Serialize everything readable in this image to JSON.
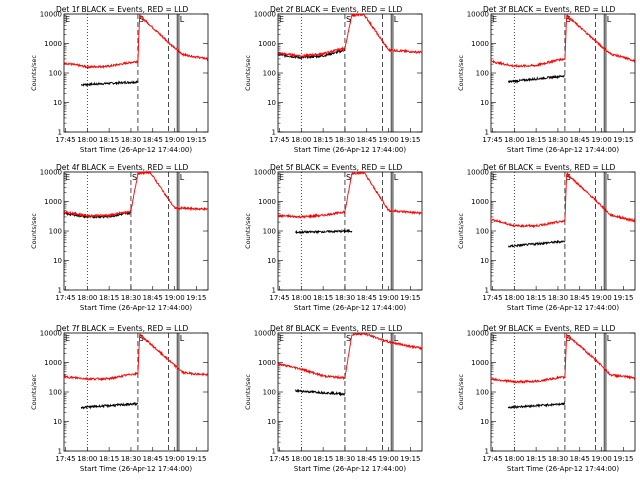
{
  "figure": {
    "background": "#ffffff",
    "series_colors": {
      "events": "#000000",
      "lld": "#ff0000"
    },
    "time_labels": [
      "17:45",
      "18:00",
      "18:15",
      "18:30",
      "18:45",
      "19:00",
      "19:15"
    ],
    "start_time_label": "Start Time (26-Apr-12 17:44:00)",
    "ylabel": "Counts/sec",
    "y_ticks": [
      "1",
      "10",
      "100",
      "1000",
      "10000"
    ],
    "event_markers": {
      "e_label": "E",
      "s_label": "S",
      "l_label": "L"
    }
  },
  "chart_data": [
    {
      "type": "line",
      "title": "Det 1f BLACK = Events, RED = LLD",
      "xlabel": "Start Time (26-Apr-12 17:44:00)",
      "ylabel": "Counts/sec",
      "xlim": [
        17.733,
        19.383
      ],
      "ylim": [
        1,
        10000
      ],
      "yscale": "log",
      "series": [
        {
          "name": "Events",
          "color": "#000000",
          "x": [
            17.93,
            18.58
          ],
          "values": [
            40,
            50
          ]
        },
        {
          "name": "LLD",
          "color": "#ff0000",
          "x": [
            17.73,
            18.0,
            18.25,
            18.5,
            18.58,
            18.6,
            19.0,
            19.1,
            19.38
          ],
          "values": [
            220,
            160,
            170,
            230,
            250,
            9000,
            700,
            420,
            300
          ]
        }
      ],
      "vlines_dotted": [
        18.0
      ],
      "vlines_dashed": [
        18.58,
        18.93
      ]
    },
    {
      "type": "line",
      "title": "Det 2f BLACK = Events, RED = LLD",
      "xlabel": "Start Time (26-Apr-12 17:44:00)",
      "ylabel": "Counts/sec",
      "xlim": [
        17.733,
        19.383
      ],
      "ylim": [
        1,
        10000
      ],
      "yscale": "log",
      "series": [
        {
          "name": "Events",
          "color": "#000000",
          "x": [
            17.73,
            18.0,
            18.25,
            18.5
          ],
          "values": [
            420,
            330,
            380,
            600
          ]
        },
        {
          "name": "LLD",
          "color": "#ff0000",
          "x": [
            17.73,
            18.0,
            18.25,
            18.5,
            18.58,
            18.72,
            19.0,
            19.38
          ],
          "values": [
            470,
            380,
            450,
            700,
            9000,
            9500,
            600,
            500
          ]
        }
      ],
      "vlines_dotted": [
        18.0
      ],
      "vlines_dashed": [
        18.5,
        18.93
      ]
    },
    {
      "type": "line",
      "title": "Det 3f BLACK = Events, RED = LLD",
      "xlabel": "Start Time (26-Apr-12 17:44:00)",
      "ylabel": "Counts/sec",
      "xlim": [
        17.733,
        19.383
      ],
      "ylim": [
        1,
        10000
      ],
      "yscale": "log",
      "series": [
        {
          "name": "Events",
          "color": "#000000",
          "x": [
            17.93,
            18.58
          ],
          "values": [
            50,
            80
          ]
        },
        {
          "name": "LLD",
          "color": "#ff0000",
          "x": [
            17.73,
            18.0,
            18.25,
            18.5,
            18.58,
            18.6,
            19.0,
            19.1,
            19.38
          ],
          "values": [
            250,
            170,
            180,
            280,
            300,
            9000,
            800,
            450,
            260
          ]
        }
      ],
      "vlines_dotted": [
        18.0
      ],
      "vlines_dashed": [
        18.58,
        18.93
      ]
    },
    {
      "type": "line",
      "title": "Det 4f BLACK = Events, RED = LLD",
      "xlabel": "Start Time (26-Apr-12 17:44:00)",
      "ylabel": "Counts/sec",
      "xlim": [
        17.733,
        19.383
      ],
      "ylim": [
        1,
        10000
      ],
      "yscale": "log",
      "series": [
        {
          "name": "Events",
          "color": "#000000",
          "x": [
            17.73,
            18.0,
            18.25,
            18.5
          ],
          "values": [
            400,
            300,
            310,
            420
          ]
        },
        {
          "name": "LLD",
          "color": "#ff0000",
          "x": [
            17.73,
            18.0,
            18.25,
            18.5,
            18.58,
            18.72,
            19.0,
            19.38
          ],
          "values": [
            450,
            330,
            340,
            470,
            9000,
            9800,
            600,
            550
          ]
        }
      ],
      "vlines_dotted": [
        18.0
      ],
      "vlines_dashed": [
        18.5,
        18.93
      ]
    },
    {
      "type": "line",
      "title": "Det 5f BLACK = Events, RED = LLD",
      "xlabel": "Start Time (26-Apr-12 17:44:00)",
      "ylabel": "Counts/sec",
      "xlim": [
        17.733,
        19.383
      ],
      "ylim": [
        1,
        10000
      ],
      "yscale": "log",
      "series": [
        {
          "name": "Events",
          "color": "#000000",
          "x": [
            17.93,
            18.58
          ],
          "values": [
            90,
            100
          ]
        },
        {
          "name": "LLD",
          "color": "#ff0000",
          "x": [
            17.73,
            18.0,
            18.25,
            18.5,
            18.58,
            18.72,
            19.0,
            19.38
          ],
          "values": [
            330,
            300,
            340,
            450,
            9000,
            9500,
            500,
            400
          ]
        }
      ],
      "vlines_dotted": [
        18.0
      ],
      "vlines_dashed": [
        18.5,
        18.93
      ]
    },
    {
      "type": "line",
      "title": "Det 6f BLACK = Events, RED = LLD",
      "xlabel": "Start Time (26-Apr-12 17:44:00)",
      "ylabel": "Counts/sec",
      "xlim": [
        17.733,
        19.383
      ],
      "ylim": [
        1,
        10000
      ],
      "yscale": "log",
      "series": [
        {
          "name": "Events",
          "color": "#000000",
          "x": [
            17.93,
            18.58
          ],
          "values": [
            30,
            45
          ]
        },
        {
          "name": "LLD",
          "color": "#ff0000",
          "x": [
            17.73,
            18.0,
            18.25,
            18.5,
            18.58,
            18.6,
            19.0,
            19.1,
            19.38
          ],
          "values": [
            250,
            150,
            150,
            200,
            220,
            9000,
            700,
            350,
            220
          ]
        }
      ],
      "vlines_dotted": [
        18.0
      ],
      "vlines_dashed": [
        18.58,
        18.93
      ]
    },
    {
      "type": "line",
      "title": "Det 7f BLACK = Events, RED = LLD",
      "xlabel": "Start Time (26-Apr-12 17:44:00)",
      "ylabel": "Counts/sec",
      "xlim": [
        17.733,
        19.383
      ],
      "ylim": [
        1,
        10000
      ],
      "yscale": "log",
      "series": [
        {
          "name": "Events",
          "color": "#000000",
          "x": [
            17.93,
            18.58
          ],
          "values": [
            30,
            40
          ]
        },
        {
          "name": "LLD",
          "color": "#ff0000",
          "x": [
            17.73,
            18.0,
            18.25,
            18.5,
            18.58,
            18.6,
            19.0,
            19.1,
            19.38
          ],
          "values": [
            330,
            280,
            280,
            400,
            420,
            9000,
            800,
            450,
            380
          ]
        }
      ],
      "vlines_dotted": [
        18.0
      ],
      "vlines_dashed": [
        18.58,
        18.93
      ]
    },
    {
      "type": "line",
      "title": "Det 8f BLACK = Events, RED = LLD",
      "xlabel": "Start Time (26-Apr-12 17:44:00)",
      "ylabel": "Counts/sec",
      "xlim": [
        17.733,
        19.383
      ],
      "ylim": [
        1,
        10000
      ],
      "yscale": "log",
      "series": [
        {
          "name": "Events",
          "color": "#000000",
          "x": [
            17.93,
            18.5
          ],
          "values": [
            110,
            85
          ]
        },
        {
          "name": "LLD",
          "color": "#ff0000",
          "x": [
            17.73,
            18.0,
            18.25,
            18.5,
            18.58,
            18.72,
            19.0,
            19.38
          ],
          "values": [
            900,
            600,
            350,
            300,
            9000,
            9500,
            5000,
            3000
          ]
        }
      ],
      "vlines_dotted": [
        18.0
      ],
      "vlines_dashed": [
        18.5,
        18.93
      ]
    },
    {
      "type": "line",
      "title": "Det 9f BLACK = Events, RED = LLD",
      "xlabel": "Start Time (26-Apr-12 17:44:00)",
      "ylabel": "Counts/sec",
      "xlim": [
        17.733,
        19.383
      ],
      "ylim": [
        1,
        10000
      ],
      "yscale": "log",
      "series": [
        {
          "name": "Events",
          "color": "#000000",
          "x": [
            17.93,
            18.58
          ],
          "values": [
            30,
            40
          ]
        },
        {
          "name": "LLD",
          "color": "#ff0000",
          "x": [
            17.73,
            18.0,
            18.25,
            18.5,
            18.58,
            18.6,
            19.0,
            19.1,
            19.38
          ],
          "values": [
            280,
            220,
            230,
            300,
            320,
            9000,
            800,
            380,
            300
          ]
        }
      ],
      "vlines_dotted": [
        18.0
      ],
      "vlines_dashed": [
        18.58,
        18.93
      ]
    }
  ]
}
